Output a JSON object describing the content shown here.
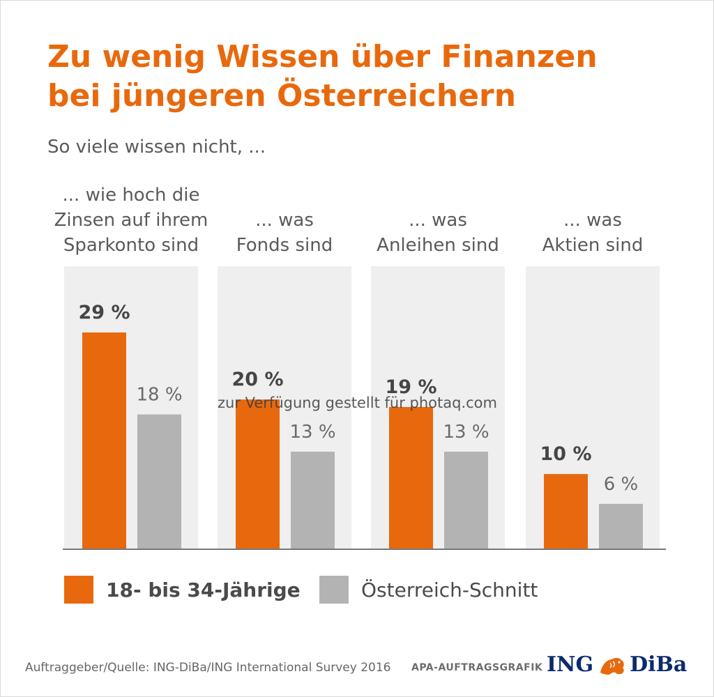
{
  "title": {
    "line1": "Zu wenig Wissen über Finanzen",
    "line2": "bei jüngeren Österreichern"
  },
  "subtitle": "So viele wissen nicht, ...",
  "category_labels": [
    [
      "... wie hoch die",
      "Zinsen auf ihrem",
      "Sparkonto sind"
    ],
    [
      "... was",
      "Fonds sind"
    ],
    [
      "... was",
      "Anleihen sind"
    ],
    [
      "... was",
      "Aktien sind"
    ]
  ],
  "legend": {
    "young": "18- bis 34-Jährige",
    "average": "Österreich-Schnitt"
  },
  "source": "Auftraggeber/Quelle: ING-DiBa/ING International Survey 2016",
  "credit": "APA-AUFTRAGSGRAFIK",
  "logo": {
    "left": "ING",
    "right": "DiBa"
  },
  "watermark": "zur Verfügung gestellt für photaq.com",
  "colors": {
    "accent": "#e8690d",
    "gray_bar": "#b3b3b3",
    "panel": "#efefef",
    "logo_blue": "#0b2a6e"
  },
  "chart_data": {
    "type": "bar",
    "title": "Zu wenig Wissen über Finanzen bei jüngeren Österreichern",
    "subtitle": "So viele wissen nicht, ...",
    "categories": [
      "... wie hoch die Zinsen auf ihrem Sparkonto sind",
      "... was Fonds sind",
      "... was Anleihen sind",
      "... was Aktien sind"
    ],
    "unit": "%",
    "series": [
      {
        "name": "18- bis 34-Jährige",
        "values": [
          29,
          20,
          19,
          10
        ],
        "labels": [
          "29 %",
          "20 %",
          "19 %",
          "10 %"
        ],
        "color": "#e8690d"
      },
      {
        "name": "Österreich-Schnitt",
        "values": [
          18,
          13,
          13,
          6
        ],
        "labels": [
          "18 %",
          "13 %",
          "13 %",
          "6 %"
        ],
        "color": "#b3b3b3"
      }
    ],
    "ylim": [
      0,
      35
    ],
    "grid": false,
    "legend": "bottom"
  }
}
